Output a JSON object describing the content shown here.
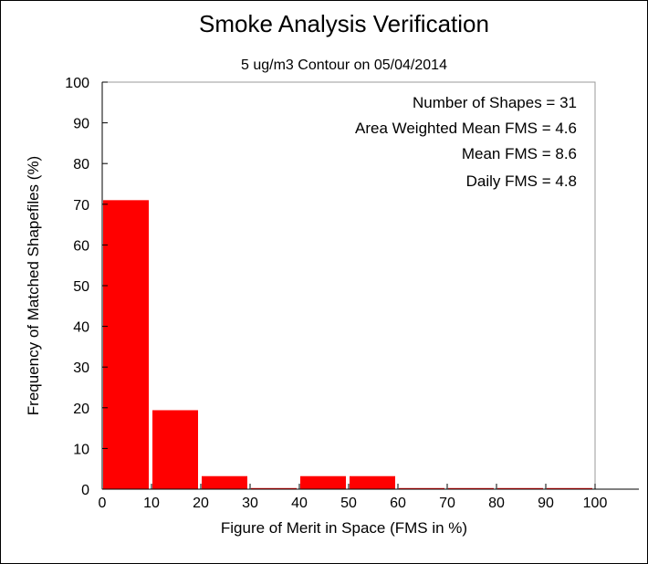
{
  "chart_data": {
    "type": "bar",
    "title": "Smoke Analysis Verification",
    "subtitle": "5 ug/m3 Contour on 05/04/2014",
    "xlabel": "Figure of Merit in Space (FMS in %)",
    "ylabel": "Frequency of Matched Shapefiles (%)",
    "xlim": [
      0,
      100
    ],
    "ylim": [
      0,
      100
    ],
    "x_ticks": [
      "0",
      "10",
      "20",
      "30",
      "40",
      "50",
      "60",
      "70",
      "80",
      "90",
      "100"
    ],
    "y_ticks": [
      "0",
      "10",
      "20",
      "30",
      "40",
      "50",
      "60",
      "70",
      "80",
      "90",
      "100"
    ],
    "bins": [
      {
        "from": 0,
        "to": 10,
        "value": 71
      },
      {
        "from": 10,
        "to": 20,
        "value": 19.4
      },
      {
        "from": 20,
        "to": 30,
        "value": 3.2
      },
      {
        "from": 30,
        "to": 40,
        "value": 0
      },
      {
        "from": 40,
        "to": 50,
        "value": 3.2
      },
      {
        "from": 50,
        "to": 60,
        "value": 3.2
      },
      {
        "from": 60,
        "to": 70,
        "value": 0
      },
      {
        "from": 70,
        "to": 80,
        "value": 0
      },
      {
        "from": 80,
        "to": 90,
        "value": 0
      },
      {
        "from": 90,
        "to": 100,
        "value": 0
      }
    ],
    "bar_color": "#ff0000",
    "grid": false,
    "annotations": [
      "Number of Shapes = 31",
      "Area Weighted Mean FMS = 4.6",
      "Mean FMS = 8.6",
      "Daily FMS = 4.8"
    ],
    "annotation_position": "top-right"
  }
}
